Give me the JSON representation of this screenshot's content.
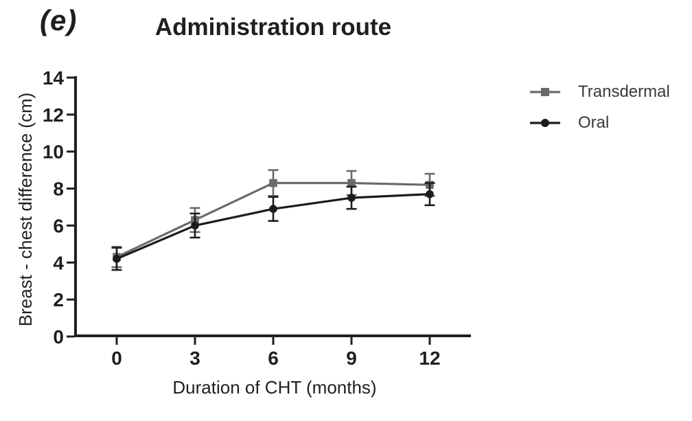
{
  "figure": {
    "panel_label": "(e)"
  },
  "chart_data": {
    "type": "line",
    "title": "Administration route",
    "xlabel": "Duration of CHT (months)",
    "ylabel": "Breast - chest difference (cm)",
    "x": [
      0,
      3,
      6,
      9,
      12
    ],
    "x_tick_labels": [
      "0",
      "3",
      "6",
      "9",
      "12"
    ],
    "y_tick_values": [
      0,
      2,
      4,
      6,
      8,
      10,
      12,
      14
    ],
    "xlim": [
      0,
      13.6
    ],
    "ylim": [
      0,
      14
    ],
    "grid": false,
    "legend_position": "right-top",
    "axis_color": "#1f1f1f",
    "series": [
      {
        "name": "Transdermal",
        "marker": "square",
        "color": "#6a6a6a",
        "values": [
          4.3,
          6.3,
          8.3,
          8.3,
          8.2
        ],
        "errors": [
          0.55,
          0.65,
          0.7,
          0.65,
          0.6
        ]
      },
      {
        "name": "Oral",
        "marker": "circle",
        "color": "#1c1c1c",
        "values": [
          4.2,
          6.0,
          6.9,
          7.5,
          7.7
        ],
        "errors": [
          0.6,
          0.65,
          0.65,
          0.6,
          0.6
        ]
      }
    ]
  }
}
